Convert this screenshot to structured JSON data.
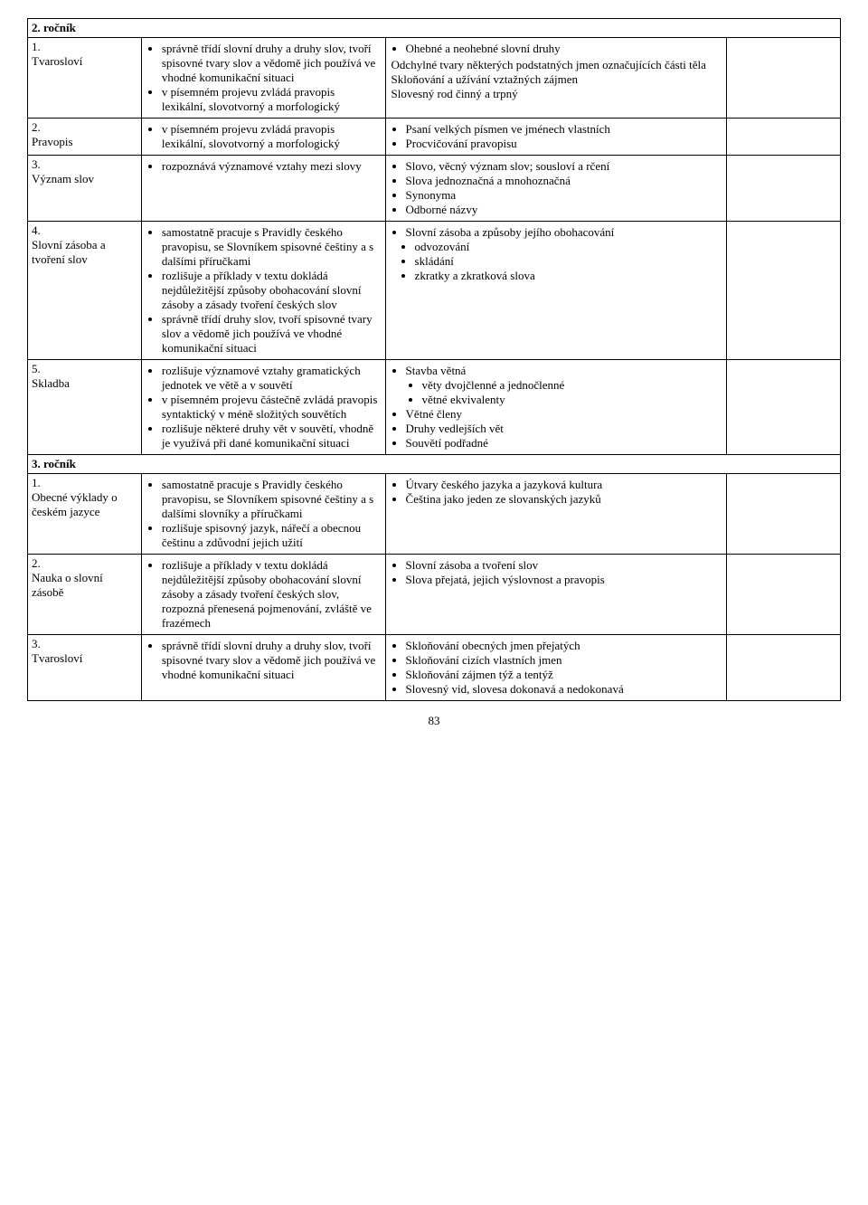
{
  "pageNumber": "83",
  "grade2": {
    "header": "2. ročník",
    "rows": [
      {
        "num": "1.",
        "title": "Tvarosloví",
        "col2": [
          "správně třídí slovní druhy a druhy slov, tvoří spisovné tvary slov a vědomě jich používá ve vhodné komunikační situaci",
          "v písemném projevu zvládá pravopis lexikální, slovotvorný a morfologický"
        ],
        "col3_plain": [
          "Ohebné a neohebné slovní druhy",
          "Odchylné tvary některých podstatných jmen označujících části těla",
          "Skloňování a užívání vztažných zájmen",
          "Slovesný rod činný a trpný"
        ]
      },
      {
        "num": "2.",
        "title": "Pravopis",
        "col2": [
          "v písemném projevu zvládá pravopis lexikální, slovotvorný a morfologický"
        ],
        "col3": [
          "Psaní velkých písmen ve jménech vlastních",
          "Procvičování pravopisu"
        ]
      },
      {
        "num": "3.",
        "title": "Význam slov",
        "col2": [
          "rozpoznává významové vztahy mezi slovy"
        ],
        "col3": [
          "Slovo, věcný význam slov; sousloví a rčení",
          "Slova jednoznačná a mnohoznačná",
          "Synonyma",
          "Odborné názvy"
        ]
      },
      {
        "num": "4.",
        "title": "Slovní zásoba a tvoření slov",
        "col2": [
          "samostatně pracuje s Pravidly českého pravopisu, se Slovníkem spisovné češtiny a s dalšími příručkami",
          "rozlišuje a příklady v textu dokládá nejdůležitější způsoby obohacování slovní zásoby a zásady tvoření českých slov",
          "správně třídí druhy slov, tvoří spisovné tvary slov a vědomě jich používá ve vhodné komunikační situaci"
        ],
        "col3_nested": {
          "main": "Slovní zásoba a způsoby jejího obohacování",
          "sub": [
            "odvozování",
            "skládání",
            "zkratky a zkratková slova"
          ]
        }
      },
      {
        "num": "5.",
        "title": "Skladba",
        "col2": [
          "rozlišuje významové vztahy gramatických jednotek ve větě a v souvětí",
          "v písemném projevu částečně zvládá pravopis syntaktický v méně složitých souvětích",
          "rozlišuje některé druhy vět v souvětí, vhodně je využívá při dané komunikační situaci"
        ],
        "col3_mixed": [
          {
            "main": "Stavba větná",
            "sub": [
              "věty dvojčlenné a jednočlenné",
              "větné ekvivalenty"
            ]
          },
          {
            "main": "Větné členy"
          },
          {
            "main": "Druhy vedlejších vět"
          },
          {
            "main": "Souvětí podřadné"
          }
        ]
      }
    ]
  },
  "grade3": {
    "header": "3. ročník",
    "rows": [
      {
        "num": "1.",
        "title": "Obecné výklady o českém jazyce",
        "col2": [
          "samostatně pracuje s Pravidly českého pravopisu, se Slovníkem spisovné češtiny a s dalšími slovníky a příručkami",
          "rozlišuje spisovný jazyk, nářečí a obecnou češtinu a zdůvodní jejich užití"
        ],
        "col3": [
          "Útvary českého jazyka a jazyková kultura",
          "Čeština jako jeden ze slovanských jazyků"
        ]
      },
      {
        "num": "2.",
        "title": "Nauka o slovní zásobě",
        "col2": [
          "rozlišuje a příklady v textu dokládá nejdůležitější způsoby obohacování slovní zásoby a zásady tvoření českých slov, rozpozná přenesená pojmenování, zvláště ve frazémech"
        ],
        "col3": [
          "Slovní zásoba a tvoření slov",
          "Slova přejatá, jejich výslovnost a pravopis"
        ]
      },
      {
        "num": "3.",
        "title": "Tvarosloví",
        "col2": [
          "správně třídí slovní druhy a druhy slov, tvoří spisovné tvary slov a vědomě jich používá ve vhodné komunikační situaci"
        ],
        "col3": [
          "Skloňování obecných jmen přejatých",
          "Skloňování cizích vlastních jmen",
          "Skloňování zájmen týž a tentýž",
          "Slovesný vid, slovesa dokonavá a nedokonavá"
        ]
      }
    ]
  }
}
